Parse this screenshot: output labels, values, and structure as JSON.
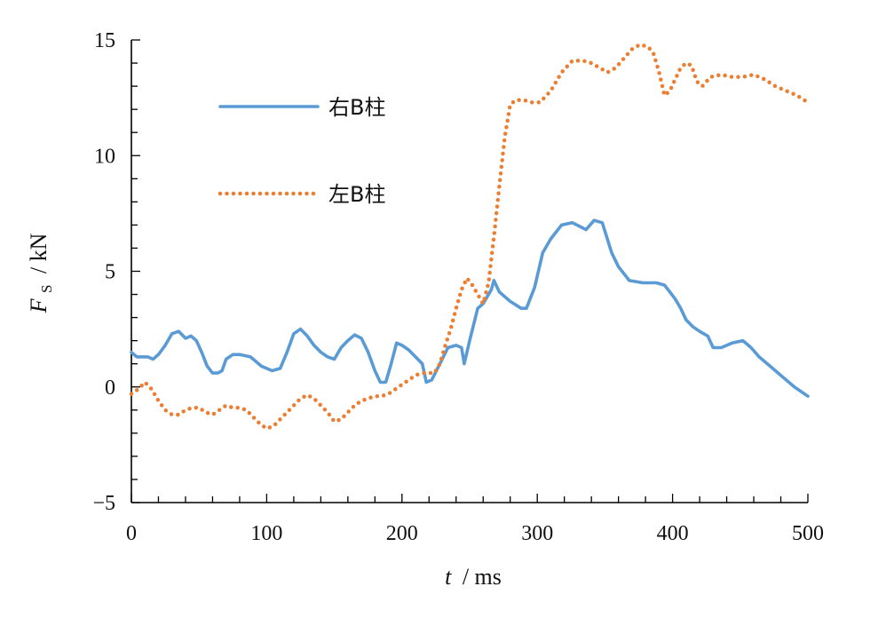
{
  "chart_data": {
    "type": "line",
    "title": "",
    "xlabel": {
      "var": "t",
      "unit": "/ ms"
    },
    "ylabel": {
      "var": "F",
      "sub": "S",
      "unit": "/ kN"
    },
    "xlim": [
      0,
      500
    ],
    "ylim": [
      -5,
      15
    ],
    "xticks": [
      0,
      100,
      200,
      300,
      400,
      500
    ],
    "yticks": [
      -5,
      0,
      5,
      10,
      15
    ],
    "grid": false,
    "legend_position": "top-left",
    "series": [
      {
        "name": "右B柱",
        "color": "#5B9BD5",
        "style": "solid",
        "x": [
          0,
          4,
          8,
          12,
          16,
          20,
          25,
          30,
          35,
          40,
          44,
          48,
          52,
          56,
          60,
          64,
          67,
          70,
          75,
          80,
          88,
          96,
          104,
          110,
          115,
          120,
          125,
          130,
          135,
          140,
          145,
          150,
          155,
          160,
          165,
          170,
          175,
          180,
          184,
          188,
          192,
          196,
          200,
          205,
          210,
          215,
          218,
          222,
          228,
          234,
          240,
          244,
          246,
          250,
          256,
          260,
          266,
          268,
          272,
          280,
          288,
          292,
          298,
          304,
          310,
          318,
          326,
          336,
          342,
          348,
          355,
          360,
          368,
          378,
          388,
          394,
          398,
          402,
          406,
          410,
          415,
          420,
          426,
          430,
          436,
          444,
          452,
          458,
          464,
          472,
          480,
          490,
          500
        ],
        "y": [
          1.5,
          1.3,
          1.3,
          1.3,
          1.2,
          1.4,
          1.8,
          2.3,
          2.4,
          2.1,
          2.2,
          2.0,
          1.5,
          0.9,
          0.6,
          0.6,
          0.7,
          1.2,
          1.4,
          1.4,
          1.3,
          0.9,
          0.7,
          0.8,
          1.5,
          2.3,
          2.5,
          2.2,
          1.8,
          1.5,
          1.3,
          1.2,
          1.7,
          2.0,
          2.25,
          2.1,
          1.5,
          0.7,
          0.2,
          0.2,
          1.0,
          1.9,
          1.8,
          1.6,
          1.3,
          1.0,
          0.2,
          0.3,
          1.0,
          1.7,
          1.8,
          1.7,
          1.0,
          2.0,
          3.4,
          3.6,
          4.2,
          4.6,
          4.1,
          3.7,
          3.4,
          3.4,
          4.3,
          5.8,
          6.4,
          7.0,
          7.1,
          6.8,
          7.2,
          7.1,
          5.8,
          5.2,
          4.6,
          4.5,
          4.5,
          4.4,
          4.1,
          3.8,
          3.4,
          2.9,
          2.6,
          2.4,
          2.2,
          1.7,
          1.7,
          1.9,
          2.0,
          1.7,
          1.3,
          0.9,
          0.5,
          0.0,
          -0.4
        ]
      },
      {
        "name": "左B柱",
        "color": "#ED7D31",
        "style": "dotted",
        "x": [
          0,
          5,
          10,
          15,
          20,
          25,
          30,
          35,
          40,
          45,
          50,
          55,
          60,
          65,
          70,
          75,
          80,
          85,
          90,
          95,
          100,
          105,
          110,
          115,
          120,
          125,
          130,
          135,
          140,
          145,
          150,
          155,
          160,
          165,
          170,
          175,
          180,
          185,
          190,
          195,
          200,
          205,
          210,
          215,
          220,
          224,
          228,
          232,
          236,
          240,
          244,
          248,
          252,
          256,
          260,
          264,
          268,
          272,
          276,
          280,
          284,
          290,
          296,
          302,
          310,
          318,
          326,
          334,
          340,
          346,
          352,
          358,
          364,
          370,
          376,
          382,
          386,
          390,
          394,
          398,
          402,
          406,
          410,
          414,
          418,
          422,
          428,
          436,
          444,
          452,
          460,
          468,
          476,
          484,
          492,
          500
        ],
        "y": [
          -0.3,
          -0.1,
          0.2,
          -0.1,
          -0.6,
          -1.0,
          -1.2,
          -1.2,
          -1.0,
          -0.9,
          -0.9,
          -1.1,
          -1.2,
          -1.0,
          -0.8,
          -0.9,
          -0.9,
          -1.0,
          -1.3,
          -1.6,
          -1.8,
          -1.7,
          -1.4,
          -1.1,
          -0.8,
          -0.5,
          -0.35,
          -0.5,
          -0.8,
          -1.1,
          -1.5,
          -1.4,
          -1.1,
          -0.8,
          -0.6,
          -0.5,
          -0.4,
          -0.4,
          -0.3,
          -0.1,
          0.1,
          0.3,
          0.5,
          0.6,
          0.6,
          0.6,
          1.0,
          1.8,
          2.5,
          3.4,
          4.2,
          4.7,
          4.4,
          4.0,
          3.6,
          4.5,
          6.5,
          8.7,
          10.8,
          12.2,
          12.4,
          12.4,
          12.3,
          12.3,
          12.8,
          13.6,
          14.1,
          14.1,
          14.0,
          13.8,
          13.6,
          13.8,
          14.2,
          14.6,
          14.8,
          14.7,
          14.4,
          13.6,
          12.6,
          12.8,
          13.3,
          13.8,
          14.0,
          13.9,
          13.2,
          13.0,
          13.4,
          13.5,
          13.4,
          13.4,
          13.5,
          13.3,
          13.0,
          12.8,
          12.6,
          12.3
        ]
      }
    ]
  }
}
